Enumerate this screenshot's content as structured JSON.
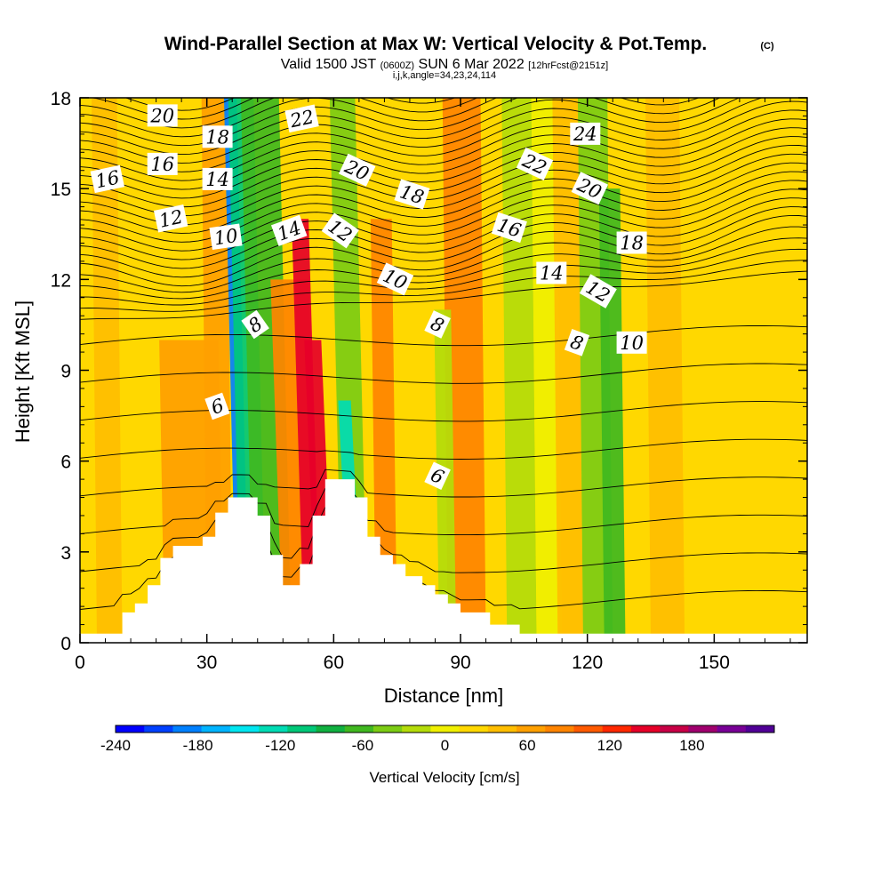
{
  "titles": {
    "main": "Wind-Parallel Section at Max W: Vertical Velocity & Pot.Temp.",
    "copyright": "(C)",
    "valid_prefix": "Valid 1500 JST",
    "valid_utc": "(0600Z)",
    "valid_date": "SUN 6 Mar 2022",
    "forecast": "[12hrFcst@2151z]",
    "params": "i,j,k,angle=34,23,24,114"
  },
  "colors": {
    "terrain": "#ffffff",
    "contour": "#000000",
    "background": "#ffffff"
  },
  "chart_data": {
    "type": "heatmap",
    "xlabel": "Distance [nm]",
    "ylabel": "Height [Kft MSL]",
    "xlim": [
      0,
      172
    ],
    "ylim": [
      0,
      18
    ],
    "xticks": [
      0,
      30,
      60,
      90,
      120,
      150
    ],
    "yticks": [
      0,
      3,
      6,
      9,
      12,
      15,
      18
    ],
    "colorbar": {
      "label": "Vertical Velocity [cm/s]",
      "range": [
        -240,
        220
      ],
      "step": 20,
      "tick_values": [
        -240,
        -180,
        -120,
        -60,
        0,
        60,
        120,
        180
      ],
      "colors": [
        "#0000ff",
        "#0040ff",
        "#0080ff",
        "#00b4ff",
        "#00e6f0",
        "#00dcb4",
        "#00c878",
        "#10b040",
        "#40b820",
        "#7ccc14",
        "#b4dc0a",
        "#f0f000",
        "#ffd800",
        "#ffbe00",
        "#ffa000",
        "#ff8400",
        "#ff5a00",
        "#ff2800",
        "#e60028",
        "#c80046",
        "#a0006e",
        "#780096",
        "#500096"
      ]
    },
    "vertical_velocity_bands": [
      {
        "x": 4,
        "width": 6,
        "value": 30,
        "top": 18
      },
      {
        "x": 20,
        "width": 14,
        "value": 50,
        "top": 10
      },
      {
        "x": 30,
        "width": 6,
        "value": 40,
        "top": 18
      },
      {
        "x": 37,
        "width": 3,
        "value": -200,
        "top": 18
      },
      {
        "x": 38,
        "width": 6,
        "value": -110,
        "top": 18
      },
      {
        "x": 41,
        "width": 9,
        "value": -70,
        "top": 18
      },
      {
        "x": 48,
        "width": 9,
        "value": 70,
        "top": 12
      },
      {
        "x": 53,
        "width": 4,
        "value": 130,
        "top": 14
      },
      {
        "x": 56,
        "width": 4,
        "value": 130,
        "top": 10
      },
      {
        "x": 62,
        "width": 6,
        "value": -60,
        "top": 18
      },
      {
        "x": 64,
        "width": 3,
        "value": -130,
        "top": 8
      },
      {
        "x": 70,
        "width": 5,
        "value": 60,
        "top": 14
      },
      {
        "x": 87,
        "width": 9,
        "value": 70,
        "top": 18
      },
      {
        "x": 85,
        "width": 4,
        "value": -40,
        "top": 11
      },
      {
        "x": 101,
        "width": 7,
        "value": -30,
        "top": 18
      },
      {
        "x": 108,
        "width": 6,
        "value": -20,
        "top": 18
      },
      {
        "x": 113,
        "width": 6,
        "value": 30,
        "top": 18
      },
      {
        "x": 119,
        "width": 7,
        "value": -50,
        "top": 18
      },
      {
        "x": 124,
        "width": 5,
        "value": -70,
        "top": 15
      },
      {
        "x": 135,
        "width": 8,
        "value": 30,
        "top": 18
      }
    ],
    "theta_contour_labels": [
      {
        "label": "20",
        "x": 19.5,
        "y": 17.4,
        "angle": 0
      },
      {
        "label": "18",
        "x": 32.5,
        "y": 16.7,
        "angle": 0
      },
      {
        "label": "22",
        "x": 52.5,
        "y": 17.3,
        "angle": -12
      },
      {
        "label": "24",
        "x": 119.5,
        "y": 16.8,
        "angle": 0
      },
      {
        "label": "20",
        "x": 65.5,
        "y": 15.6,
        "angle": 25
      },
      {
        "label": "22",
        "x": 107.5,
        "y": 15.8,
        "angle": 25
      },
      {
        "label": "16",
        "x": 6.5,
        "y": 15.3,
        "angle": -12
      },
      {
        "label": "16",
        "x": 19.5,
        "y": 15.8,
        "angle": 0
      },
      {
        "label": "14",
        "x": 32.5,
        "y": 15.3,
        "angle": 0
      },
      {
        "label": "18",
        "x": 78.5,
        "y": 14.8,
        "angle": 18
      },
      {
        "label": "20",
        "x": 120.5,
        "y": 15.0,
        "angle": 25
      },
      {
        "label": "12",
        "x": 21.5,
        "y": 14.0,
        "angle": -12
      },
      {
        "label": "10",
        "x": 34.5,
        "y": 13.4,
        "angle": -8
      },
      {
        "label": "14",
        "x": 49.5,
        "y": 13.6,
        "angle": -20
      },
      {
        "label": "12",
        "x": 61.5,
        "y": 13.6,
        "angle": 35
      },
      {
        "label": "16",
        "x": 101.5,
        "y": 13.7,
        "angle": 18
      },
      {
        "label": "18",
        "x": 130.5,
        "y": 13.2,
        "angle": 0
      },
      {
        "label": "10",
        "x": 74.5,
        "y": 12.0,
        "angle": 25
      },
      {
        "label": "14",
        "x": 111.5,
        "y": 12.2,
        "angle": 0
      },
      {
        "label": "12",
        "x": 122.5,
        "y": 11.6,
        "angle": 30
      },
      {
        "label": "8",
        "x": 41.5,
        "y": 10.5,
        "angle": -35
      },
      {
        "label": "8",
        "x": 84.5,
        "y": 10.5,
        "angle": 25
      },
      {
        "label": "8",
        "x": 117.5,
        "y": 9.9,
        "angle": 20
      },
      {
        "label": "10",
        "x": 130.5,
        "y": 9.9,
        "angle": 0
      },
      {
        "label": "6",
        "x": 32.5,
        "y": 7.8,
        "angle": -20
      },
      {
        "label": "6",
        "x": 84.5,
        "y": 5.5,
        "angle": 25
      }
    ],
    "terrain_profile": [
      [
        0,
        0.3
      ],
      [
        5,
        0.3
      ],
      [
        10,
        0.3
      ],
      [
        10,
        1
      ],
      [
        13,
        1
      ],
      [
        13,
        1.3
      ],
      [
        16,
        1.3
      ],
      [
        16,
        1.9
      ],
      [
        19,
        1.9
      ],
      [
        19,
        2.8
      ],
      [
        22,
        2.8
      ],
      [
        22,
        3.2
      ],
      [
        29,
        3.2
      ],
      [
        29,
        3.5
      ],
      [
        32,
        3.5
      ],
      [
        32,
        4.3
      ],
      [
        35,
        4.3
      ],
      [
        35,
        4.8
      ],
      [
        38,
        4.8
      ],
      [
        38,
        4.8
      ],
      [
        42,
        4.8
      ],
      [
        42,
        4.2
      ],
      [
        45,
        4.2
      ],
      [
        45,
        2.9
      ],
      [
        48,
        2.9
      ],
      [
        48,
        1.9
      ],
      [
        52,
        1.9
      ],
      [
        52,
        2.6
      ],
      [
        55,
        2.6
      ],
      [
        55,
        4.2
      ],
      [
        58,
        4.2
      ],
      [
        58,
        5.4
      ],
      [
        65,
        5.4
      ],
      [
        65,
        4.8
      ],
      [
        68,
        4.8
      ],
      [
        68,
        3.5
      ],
      [
        71,
        3.5
      ],
      [
        71,
        2.9
      ],
      [
        74,
        2.9
      ],
      [
        74,
        2.6
      ],
      [
        77,
        2.6
      ],
      [
        77,
        2.2
      ],
      [
        81,
        2.2
      ],
      [
        81,
        1.9
      ],
      [
        84,
        1.9
      ],
      [
        84,
        1.6
      ],
      [
        87,
        1.6
      ],
      [
        87,
        1.3
      ],
      [
        90,
        1.3
      ],
      [
        90,
        1
      ],
      [
        97,
        1
      ],
      [
        97,
        0.6
      ],
      [
        104,
        0.6
      ],
      [
        104,
        0.3
      ],
      [
        172,
        0.3
      ]
    ]
  }
}
